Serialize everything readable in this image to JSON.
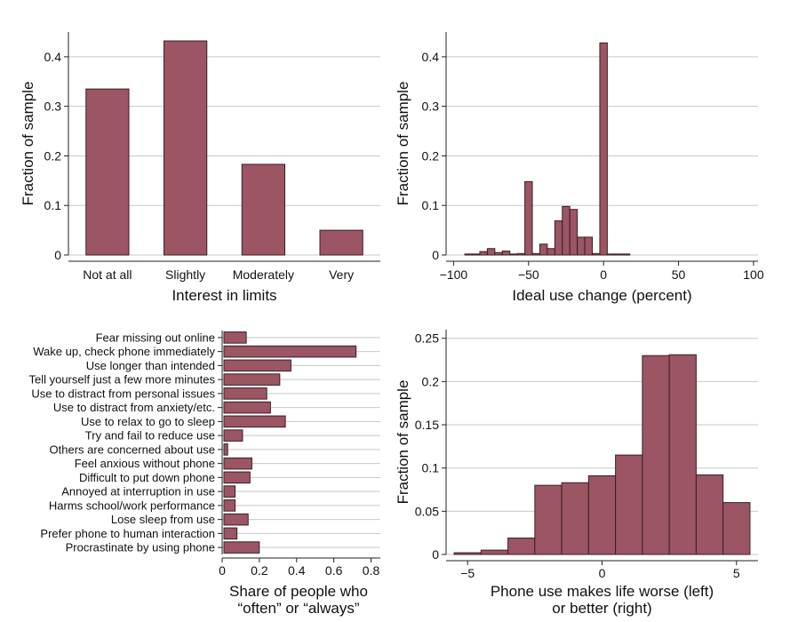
{
  "chart_data": [
    {
      "type": "bar",
      "categories": [
        "Not at all",
        "Slightly",
        "Moderately",
        "Very"
      ],
      "values": [
        0.335,
        0.432,
        0.183,
        0.05
      ],
      "xlabel": "Interest in limits",
      "ylabel": "Fraction of sample",
      "ylim": [
        0,
        0.45
      ],
      "yticks": [
        0,
        0.1,
        0.2,
        0.3,
        0.4
      ],
      "ytick_labels": [
        "0",
        "0.1",
        "0.2",
        "0.3",
        "0.4"
      ],
      "grid": true,
      "color": "#9b5563"
    },
    {
      "type": "bar",
      "subtype": "histogram",
      "bins": [
        {
          "x": -90,
          "y": 0.002
        },
        {
          "x": -85,
          "y": 0.002
        },
        {
          "x": -80,
          "y": 0.007
        },
        {
          "x": -75,
          "y": 0.013
        },
        {
          "x": -70,
          "y": 0.005
        },
        {
          "x": -65,
          "y": 0.008
        },
        {
          "x": -60,
          "y": 0.002
        },
        {
          "x": -55,
          "y": 0.003
        },
        {
          "x": -50,
          "y": 0.148
        },
        {
          "x": -45,
          "y": 0.003
        },
        {
          "x": -40,
          "y": 0.022
        },
        {
          "x": -35,
          "y": 0.013
        },
        {
          "x": -30,
          "y": 0.069
        },
        {
          "x": -25,
          "y": 0.098
        },
        {
          "x": -20,
          "y": 0.092
        },
        {
          "x": -15,
          "y": 0.036
        },
        {
          "x": -10,
          "y": 0.036
        },
        {
          "x": -5,
          "y": 0.003
        },
        {
          "x": 0,
          "y": 0.428
        },
        {
          "x": 5,
          "y": 0.002
        },
        {
          "x": 10,
          "y": 0.002
        },
        {
          "x": 15,
          "y": 0.002
        }
      ],
      "bin_width": 5,
      "xlabel": "Ideal use change (percent)",
      "ylabel": "Fraction of sample",
      "xlim": [
        -105,
        103
      ],
      "ylim": [
        0,
        0.45
      ],
      "xticks": [
        -100,
        -50,
        0,
        50,
        100
      ],
      "xtick_labels": [
        "−100",
        "−50",
        "0",
        "50",
        "100"
      ],
      "yticks": [
        0,
        0.1,
        0.2,
        0.3,
        0.4
      ],
      "ytick_labels": [
        "0",
        "0.1",
        "0.2",
        "0.3",
        "0.4"
      ],
      "grid": true,
      "color": "#9b5563"
    },
    {
      "type": "bar",
      "orientation": "horizontal",
      "categories": [
        "Fear missing out online",
        "Wake up, check phone immediately",
        "Use longer than intended",
        "Tell yourself just a few more minutes",
        "Use to distract from personal issues",
        "Use to distract from anxiety/etc.",
        "Use to relax to go to sleep",
        "Try and fail to reduce use",
        "Others are concerned about use",
        "Feel anxious without phone",
        "Difficult to put down phone",
        "Annoyed at interruption in use",
        "Harms school/work performance",
        "Lose sleep from use",
        "Prefer phone to human interaction",
        "Procrastinate by using phone"
      ],
      "values": [
        0.12,
        0.71,
        0.36,
        0.3,
        0.23,
        0.25,
        0.33,
        0.1,
        0.02,
        0.15,
        0.14,
        0.06,
        0.06,
        0.13,
        0.07,
        0.19
      ],
      "xlabel": "Share of people who\n“often” or “always”",
      "xlim": [
        0,
        0.85
      ],
      "xticks": [
        0,
        0.2,
        0.4,
        0.6,
        0.8
      ],
      "xtick_labels": [
        "0",
        "0.2",
        "0.4",
        "0.6",
        "0.8"
      ],
      "grid": true,
      "color": "#9b5563"
    },
    {
      "type": "bar",
      "subtype": "histogram",
      "bins": [
        {
          "x0": -5.5,
          "x1": -4.5,
          "y": 0.002
        },
        {
          "x0": -4.5,
          "x1": -3.5,
          "y": 0.005
        },
        {
          "x0": -3.5,
          "x1": -2.5,
          "y": 0.019
        },
        {
          "x0": -2.5,
          "x1": -1.5,
          "y": 0.08
        },
        {
          "x0": -1.5,
          "x1": -0.5,
          "y": 0.083
        },
        {
          "x0": -0.5,
          "x1": 0.5,
          "y": 0.091
        },
        {
          "x0": 0.5,
          "x1": 1.5,
          "y": 0.115
        },
        {
          "x0": 1.5,
          "x1": 2.5,
          "y": 0.23
        },
        {
          "x0": 2.5,
          "x1": 3.5,
          "y": 0.231
        },
        {
          "x0": 3.5,
          "x1": 4.5,
          "y": 0.092
        },
        {
          "x0": 4.5,
          "x1": 5.5,
          "y": 0.06
        }
      ],
      "xlabel": "Phone use makes life worse (left)\nor better (right)",
      "ylabel": "Fraction of sample",
      "xlim": [
        -5.8,
        5.8
      ],
      "ylim": [
        0,
        0.26
      ],
      "xticks": [
        -5,
        0,
        5
      ],
      "xtick_labels": [
        "−5",
        "0",
        "5"
      ],
      "yticks": [
        0,
        0.05,
        0.1,
        0.15,
        0.2,
        0.25
      ],
      "ytick_labels": [
        "0",
        "0.05",
        "0.1",
        "0.15",
        "0.2",
        "0.25"
      ],
      "grid": true,
      "color": "#9b5563"
    }
  ]
}
